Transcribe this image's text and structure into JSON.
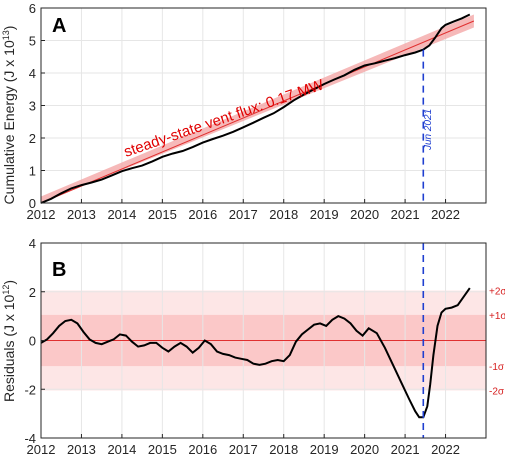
{
  "chart_data": [
    {
      "type": "line",
      "panel_label": "A",
      "ylabel": "Cumulative Energy (J x 10",
      "ylabel_exp": "13",
      "ylabel_tail": ")",
      "xlim": [
        2012,
        2023
      ],
      "ylim": [
        0,
        6
      ],
      "xticks": [
        "2012",
        "2013",
        "2014",
        "2015",
        "2016",
        "2017",
        "2018",
        "2019",
        "2020",
        "2021",
        "2022"
      ],
      "yticks": [
        "0",
        "1",
        "2",
        "3",
        "4",
        "5",
        "6"
      ],
      "grid": true,
      "annotation": "steady-state vent flux: 0.17 MW",
      "event_label": "Jun 2021",
      "event_x": 2021.45,
      "colors": {
        "data": "#000000",
        "fit": "#e03030",
        "band": "#f4a8a8",
        "event": "#1f3fd0"
      },
      "fit": {
        "x": [
          2012.0,
          2022.7
        ],
        "y": [
          0.0,
          5.6
        ]
      },
      "band_halfwidth": 0.2,
      "series": [
        {
          "x": [
            2012.0,
            2012.25,
            2012.5,
            2012.75,
            2013.0,
            2013.25,
            2013.5,
            2013.75,
            2014.0,
            2014.25,
            2014.5,
            2014.75,
            2015.0,
            2015.25,
            2015.5,
            2015.75,
            2016.0,
            2016.25,
            2016.5,
            2016.75,
            2017.0,
            2017.25,
            2017.5,
            2017.75,
            2018.0,
            2018.25,
            2018.5,
            2018.75,
            2019.0,
            2019.25,
            2019.5,
            2019.75,
            2020.0,
            2020.25,
            2020.5,
            2020.75,
            2021.0,
            2021.25,
            2021.45,
            2021.6,
            2021.75,
            2021.9,
            2022.0,
            2022.2,
            2022.4,
            2022.6
          ],
          "y": [
            0.0,
            0.13,
            0.3,
            0.45,
            0.55,
            0.63,
            0.72,
            0.85,
            0.98,
            1.07,
            1.15,
            1.28,
            1.42,
            1.52,
            1.6,
            1.72,
            1.86,
            1.97,
            2.07,
            2.19,
            2.33,
            2.47,
            2.62,
            2.76,
            2.95,
            3.16,
            3.34,
            3.5,
            3.66,
            3.8,
            3.93,
            4.1,
            4.23,
            4.3,
            4.38,
            4.46,
            4.55,
            4.63,
            4.72,
            4.85,
            5.1,
            5.38,
            5.48,
            5.58,
            5.68,
            5.8
          ]
        }
      ]
    },
    {
      "type": "line",
      "panel_label": "B",
      "ylabel": "Residuals (J x 10",
      "ylabel_exp": "12",
      "ylabel_tail": ")",
      "xlim": [
        2012,
        2023
      ],
      "ylim": [
        -4,
        4
      ],
      "xticks": [
        "2012",
        "2013",
        "2014",
        "2015",
        "2016",
        "2017",
        "2018",
        "2019",
        "2020",
        "2021",
        "2022"
      ],
      "yticks": [
        "-4",
        "-2",
        "0",
        "2",
        "4"
      ],
      "grid": true,
      "event_x": 2021.45,
      "sigma_labels": [
        "+2σ",
        "+1σ",
        "-1σ",
        "-2σ"
      ],
      "sigma_values": [
        2.05,
        1.05,
        -1.05,
        -2.05
      ],
      "colors": {
        "data": "#000000",
        "zero": "#e03030",
        "band1": "#fbc8c8",
        "band2": "#fde6e6",
        "event": "#1f3fd0"
      },
      "series": [
        {
          "x": [
            2012.0,
            2012.15,
            2012.3,
            2012.45,
            2012.6,
            2012.75,
            2012.9,
            2013.05,
            2013.2,
            2013.35,
            2013.5,
            2013.65,
            2013.8,
            2013.95,
            2014.1,
            2014.25,
            2014.4,
            2014.55,
            2014.7,
            2014.85,
            2015.0,
            2015.15,
            2015.3,
            2015.45,
            2015.6,
            2015.75,
            2015.9,
            2016.05,
            2016.2,
            2016.35,
            2016.5,
            2016.65,
            2016.8,
            2016.95,
            2017.1,
            2017.25,
            2017.4,
            2017.55,
            2017.7,
            2017.85,
            2018.0,
            2018.15,
            2018.3,
            2018.45,
            2018.6,
            2018.75,
            2018.9,
            2019.05,
            2019.2,
            2019.35,
            2019.5,
            2019.65,
            2019.8,
            2019.95,
            2020.1,
            2020.3,
            2020.5,
            2020.7,
            2020.9,
            2021.1,
            2021.25,
            2021.35,
            2021.45,
            2021.55,
            2021.62,
            2021.7,
            2021.8,
            2021.9,
            2022.0,
            2022.15,
            2022.3,
            2022.45,
            2022.6
          ],
          "y": [
            -0.1,
            0.05,
            0.3,
            0.6,
            0.8,
            0.85,
            0.7,
            0.35,
            0.05,
            -0.1,
            -0.15,
            -0.05,
            0.05,
            0.25,
            0.2,
            -0.05,
            -0.25,
            -0.2,
            -0.1,
            -0.1,
            -0.3,
            -0.45,
            -0.25,
            -0.1,
            -0.25,
            -0.5,
            -0.3,
            0.0,
            -0.15,
            -0.45,
            -0.55,
            -0.6,
            -0.7,
            -0.75,
            -0.8,
            -0.95,
            -1.0,
            -0.95,
            -0.85,
            -0.8,
            -0.85,
            -0.6,
            -0.05,
            0.25,
            0.45,
            0.65,
            0.7,
            0.6,
            0.85,
            1.0,
            0.9,
            0.7,
            0.4,
            0.2,
            0.5,
            0.3,
            -0.3,
            -1.0,
            -1.7,
            -2.4,
            -2.9,
            -3.15,
            -3.15,
            -2.7,
            -1.8,
            -0.6,
            0.6,
            1.15,
            1.3,
            1.35,
            1.45,
            1.8,
            2.15
          ]
        }
      ]
    }
  ]
}
